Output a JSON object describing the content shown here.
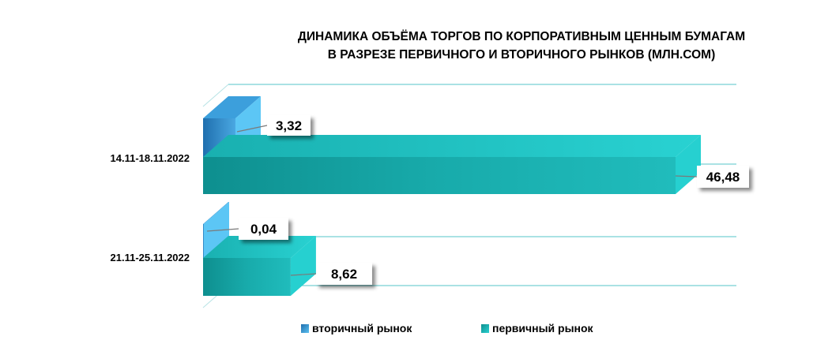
{
  "chart_data": {
    "type": "bar",
    "orientation": "horizontal",
    "title": "ДИНАМИКА ОБЪЁМА ТОРГОВ ПО КОРПОРАТИВНЫМ ЦЕННЫМ БУМАГАМ В РАЗРЕЗЕ ПЕРВИЧНОГО И ВТОРИЧНОГО РЫНКОВ  (МЛН.СОМ)",
    "title_lines": [
      "ДИНАМИКА ОБЪЁМА ТОРГОВ ПО КОРПОРАТИВНЫМ ЦЕННЫМ БУМАГАМ",
      "В РАЗРЕЗЕ ПЕРВИЧНОГО И ВТОРИЧНОГО РЫНКОВ  (МЛН.СОМ)"
    ],
    "categories": [
      "14.11-18.11.2022",
      "21.11-25.11.2022"
    ],
    "series": [
      {
        "name": "вторичный рынок",
        "values": [
          3.32,
          0.04
        ],
        "labels": [
          "3,32",
          "0,04"
        ],
        "color": "#3fa9e0"
      },
      {
        "name": "первичный рынок",
        "values": [
          46.48,
          8.62
        ],
        "labels": [
          "46,48",
          "8,62"
        ],
        "color": "#1ab8b8"
      }
    ],
    "xlim": [
      0,
      50
    ],
    "grid": true,
    "legend_position": "bottom",
    "three_d": true
  }
}
